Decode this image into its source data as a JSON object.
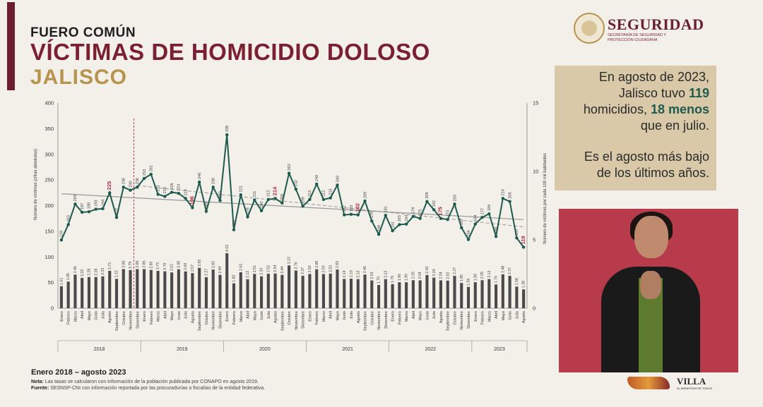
{
  "header": {
    "kicker": "FUERO COMÚN",
    "title": "VÍCTIMAS DE HOMICIDIO DOLOSO",
    "state": "JALISCO"
  },
  "logo": {
    "name": "SEGURIDAD",
    "subtitle": "SECRETARÍA DE SEGURIDAD Y PROTECCIÓN CIUDADANA"
  },
  "callout": {
    "line1_a": "En agosto de 2023,",
    "line2_a": "Jalisco tuvo ",
    "line2_b": "119",
    "line3_a": "homicidios, ",
    "line3_b": "18 menos",
    "line4": "que en julio.",
    "line5": "Es el agosto más bajo",
    "line6": "de los últimos años."
  },
  "sign_logo": {
    "name": "VILLA",
    "subtitle": "EL BIENESTAR DE TODOS"
  },
  "footer": {
    "period": "Enero 2018 – agosto 2023",
    "note_label": "Nota:",
    "note_text": " Las tasas se calcularon con información de la población publicada por CONAPO en agosto 2019.",
    "source_label": "Fuente:",
    "source_text": " SESNSP-CNI con información reportada por las procuradurías o fiscalías de la entidad federativa."
  },
  "colors": {
    "line": "#1e5b4f",
    "bars": "#4a4a4a",
    "highlight": "#b0283f",
    "trend": "#999999"
  },
  "chart_data": {
    "type": "line",
    "ylabel_left": "Número de víctimas (cifras absolutas)",
    "ylabel_right": "Número de víctimas por cada 100 mil habitantes",
    "left_ticks": [
      "400",
      "350",
      "300",
      "250",
      "200",
      "150",
      "100",
      "50",
      "0"
    ],
    "right_ticks": [
      "15",
      "10",
      "5",
      "0"
    ],
    "ylim_left": [
      0,
      400
    ],
    "ylim_right": [
      0,
      15
    ],
    "months": [
      "Enero",
      "Febrero",
      "Marzo",
      "Abril",
      "Mayo",
      "Junio",
      "Julio",
      "Agosto",
      "Septiembre",
      "Octubre",
      "Noviembre",
      "Diciembre"
    ],
    "years": [
      "2018",
      "2019",
      "2020",
      "2021",
      "2022",
      "2023"
    ],
    "victims": [
      133,
      163,
      203,
      187,
      188,
      193,
      194,
      225,
      177,
      236,
      230,
      236,
      253,
      261,
      222,
      218,
      226,
      224,
      214,
      196,
      246,
      189,
      236,
      210,
      338,
      153,
      221,
      178,
      211,
      190,
      212,
      214,
      205,
      263,
      232,
      199,
      212,
      242,
      212,
      215,
      240,
      182,
      183,
      182,
      209,
      170,
      144,
      181,
      151,
      163,
      164,
      179,
      175,
      208,
      192,
      175,
      173,
      203,
      157,
      134,
      164,
      177,
      184,
      140,
      214,
      208,
      137,
      119
    ],
    "rates": [
      1.61,
      1.95,
      2.46,
      2.22,
      2.28,
      2.28,
      2.33,
      2.73,
      2.15,
      2.86,
      2.79,
      2.86,
      2.86,
      2.8,
      2.73,
      2.7,
      2.62,
      2.85,
      2.69,
      2.57,
      2.95,
      2.27,
      2.83,
      2.44,
      4.02,
      1.82,
      2.63,
      2.12,
      2.51,
      2.33,
      2.52,
      2.54,
      2.44,
      3.13,
      2.76,
      2.37,
      2.5,
      2.85,
      2.5,
      2.53,
      2.83,
      2.14,
      2.16,
      2.13,
      2.46,
      2.03,
      1.7,
      2.13,
      1.76,
      1.9,
      1.9,
      2.05,
      2.04,
      2.43,
      2.24,
      2.04,
      2.02,
      2.37,
      1.85,
      1.56,
      1.9,
      2.05,
      2.13,
      1.74,
      2.48,
      2.37,
      1.58,
      1.38
    ],
    "highlighted_labels": [
      7,
      19,
      31,
      43,
      55,
      67
    ],
    "separator_after_index": 10
  }
}
